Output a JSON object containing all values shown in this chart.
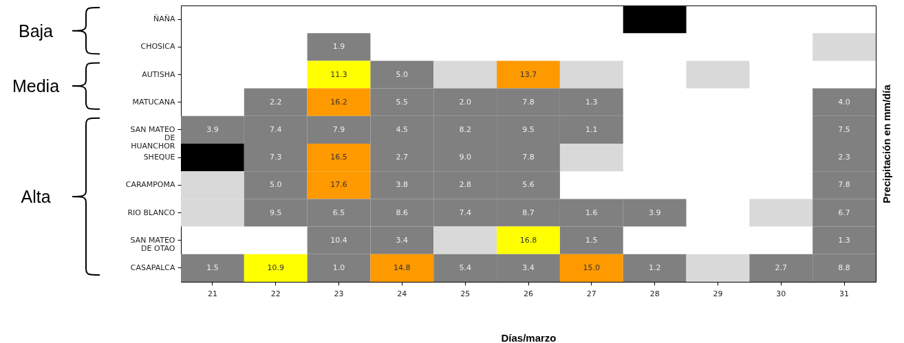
{
  "chart_data": {
    "type": "heatmap",
    "xlabel": "Días/marzo",
    "y2label": "Precipitación en mm/día",
    "categories": [
      "21",
      "22",
      "23",
      "24",
      "25",
      "26",
      "27",
      "28",
      "29",
      "30",
      "31"
    ],
    "y_categories": [
      "ÑAÑA",
      "CHOSICA",
      "AUTISHA",
      "MATUCANA",
      "SAN MATEO\nDE\nHUANCHOR",
      "SHEQUE",
      "CARAMPOMA",
      "RIO BLANCO",
      "SAN MATEO\nDE OTAO",
      "CASAPALCA"
    ],
    "cells": [
      [
        null,
        null,
        null,
        null,
        null,
        null,
        null,
        null,
        null,
        null,
        null
      ],
      [
        null,
        null,
        1.9,
        null,
        null,
        null,
        null,
        null,
        null,
        null,
        null
      ],
      [
        null,
        null,
        11.3,
        5.0,
        null,
        13.7,
        null,
        null,
        null,
        null,
        null
      ],
      [
        null,
        2.2,
        16.2,
        5.5,
        2.0,
        7.8,
        1.3,
        null,
        null,
        null,
        4.0
      ],
      [
        3.9,
        7.4,
        7.9,
        4.5,
        8.2,
        9.5,
        1.1,
        null,
        null,
        null,
        7.5
      ],
      [
        null,
        7.3,
        16.5,
        2.7,
        9.0,
        7.8,
        null,
        null,
        null,
        null,
        2.3
      ],
      [
        null,
        5.0,
        17.6,
        3.8,
        2.8,
        5.6,
        null,
        null,
        null,
        null,
        7.8
      ],
      [
        null,
        9.5,
        6.5,
        8.6,
        7.4,
        8.7,
        1.6,
        3.9,
        null,
        null,
        6.7
      ],
      [
        null,
        null,
        10.4,
        3.4,
        null,
        16.8,
        1.5,
        null,
        null,
        null,
        1.3
      ],
      [
        1.5,
        10.9,
        1.0,
        14.8,
        5.4,
        3.4,
        15.0,
        1.2,
        null,
        2.7,
        8.8
      ]
    ],
    "colors": [
      [
        null,
        null,
        null,
        null,
        null,
        null,
        null,
        "#000000",
        null,
        null,
        null
      ],
      [
        null,
        null,
        "#808080",
        null,
        null,
        null,
        null,
        null,
        null,
        null,
        "#d9d9d9"
      ],
      [
        null,
        null,
        "#ffff00",
        "#808080",
        "#d9d9d9",
        "#ff9900",
        "#d9d9d9",
        null,
        "#d9d9d9",
        null,
        null
      ],
      [
        null,
        "#808080",
        "#ff9900",
        "#808080",
        "#808080",
        "#808080",
        "#808080",
        null,
        null,
        null,
        "#808080"
      ],
      [
        "#808080",
        "#808080",
        "#808080",
        "#808080",
        "#808080",
        "#808080",
        "#808080",
        null,
        null,
        null,
        "#808080"
      ],
      [
        "#000000",
        "#808080",
        "#ff9900",
        "#808080",
        "#808080",
        "#808080",
        "#d9d9d9",
        null,
        null,
        null,
        "#808080"
      ],
      [
        "#d9d9d9",
        "#808080",
        "#ff9900",
        "#808080",
        "#808080",
        "#808080",
        null,
        null,
        null,
        null,
        "#808080"
      ],
      [
        "#d9d9d9",
        "#808080",
        "#808080",
        "#808080",
        "#808080",
        "#808080",
        "#808080",
        "#808080",
        null,
        "#d9d9d9",
        "#808080"
      ],
      [
        null,
        null,
        "#808080",
        "#808080",
        "#d9d9d9",
        "#ffff00",
        "#808080",
        null,
        null,
        null,
        "#808080"
      ],
      [
        "#808080",
        "#ffff00",
        "#808080",
        "#ff9900",
        "#808080",
        "#808080",
        "#ff9900",
        "#808080",
        "#d9d9d9",
        "#808080",
        "#808080"
      ]
    ],
    "cell_labels": [
      [
        null,
        null,
        null,
        null,
        null,
        null,
        null,
        null,
        null,
        null,
        null
      ],
      [
        null,
        null,
        "1.9",
        null,
        null,
        null,
        null,
        null,
        null,
        null,
        null
      ],
      [
        null,
        null,
        "11.3",
        "5.0",
        null,
        "13.7",
        null,
        null,
        null,
        null,
        null
      ],
      [
        null,
        "2.2",
        "16.2",
        "5.5",
        "2.0",
        "7.8",
        "1.3",
        null,
        null,
        null,
        "4.0"
      ],
      [
        "3.9",
        "7.4",
        "7.9",
        "4.5",
        "8.2",
        "9.5",
        "1.1",
        null,
        null,
        null,
        "7.5"
      ],
      [
        null,
        "7.3",
        "16.5",
        "2.7",
        "9.0",
        "7.8",
        null,
        null,
        null,
        null,
        "2.3"
      ],
      [
        null,
        "5.0",
        "17.6",
        "3.8",
        "2.8",
        "5.6",
        null,
        null,
        null,
        null,
        "7.8"
      ],
      [
        null,
        "9.5",
        "6.5",
        "8.6",
        "7.4",
        "8.7",
        "1.6",
        "3.9",
        null,
        null,
        "6.7"
      ],
      [
        null,
        null,
        "10.4",
        "3.4",
        null,
        "16.8",
        "1.5",
        null,
        null,
        null,
        "1.3"
      ],
      [
        "1.5",
        "10.9",
        "1.0",
        "14.8",
        "5.4",
        "3.4",
        "15.0",
        "1.2",
        null,
        "2.7",
        "8.8"
      ]
    ],
    "annotations": [
      "Baja",
      "Media",
      "Alta"
    ]
  }
}
